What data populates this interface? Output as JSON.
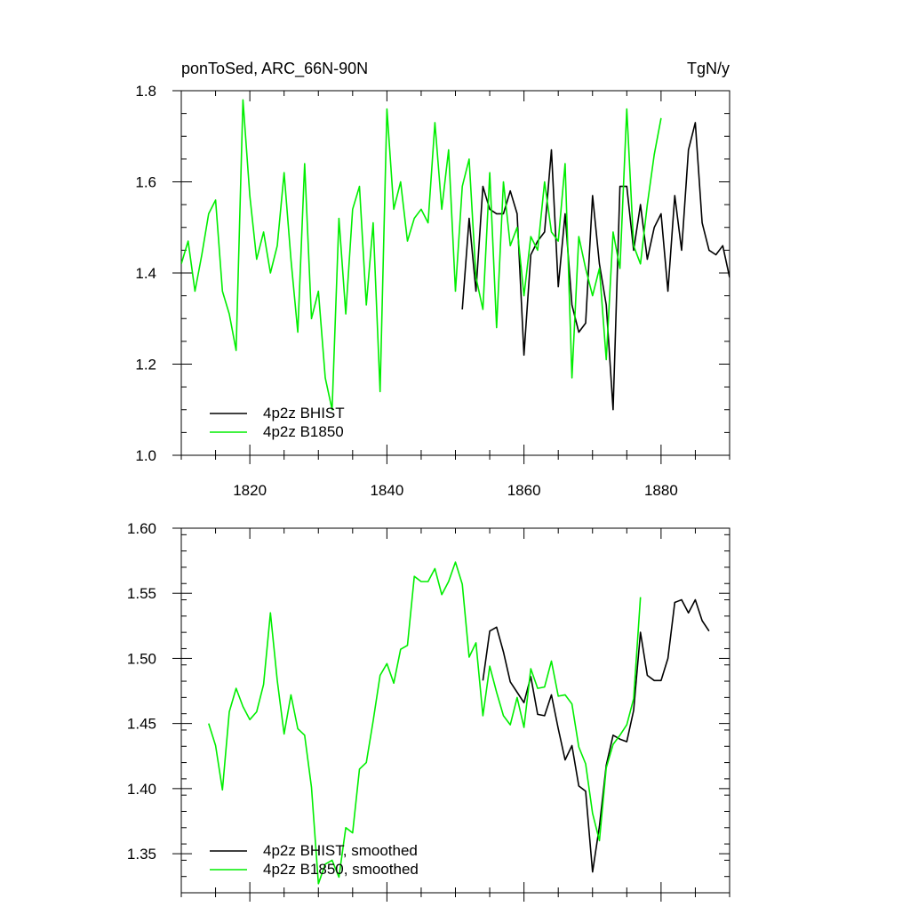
{
  "chart_data": [
    {
      "type": "line",
      "title_left": "ponToSed, ARC_66N-90N",
      "title_right": "TgN/y",
      "xlim": [
        1810,
        1890
      ],
      "ylim": [
        1.0,
        1.8
      ],
      "x_ticks": [
        1820,
        1840,
        1860,
        1880
      ],
      "y_ticks": [
        1.0,
        1.2,
        1.4,
        1.6,
        1.8
      ],
      "y_tick_labels": [
        "1.0",
        "1.2",
        "1.4",
        "1.6",
        "1.8"
      ],
      "grid": false,
      "legend_position": "bottom-left",
      "series": [
        {
          "name": "4p2z BHIST",
          "color": "#000000",
          "x": [
            1851,
            1852,
            1853,
            1854,
            1855,
            1856,
            1857,
            1858,
            1859,
            1860,
            1861,
            1862,
            1863,
            1864,
            1865,
            1866,
            1867,
            1868,
            1869,
            1870,
            1871,
            1872,
            1873,
            1874,
            1875,
            1876,
            1877,
            1878,
            1879,
            1880,
            1881,
            1882,
            1883,
            1884,
            1885,
            1886,
            1887,
            1888,
            1889,
            1890
          ],
          "y": [
            1.32,
            1.52,
            1.36,
            1.59,
            1.54,
            1.53,
            1.53,
            1.58,
            1.53,
            1.22,
            1.44,
            1.47,
            1.49,
            1.67,
            1.37,
            1.53,
            1.33,
            1.27,
            1.29,
            1.57,
            1.42,
            1.33,
            1.1,
            1.59,
            1.59,
            1.45,
            1.55,
            1.43,
            1.5,
            1.53,
            1.36,
            1.57,
            1.45,
            1.67,
            1.73,
            1.51,
            1.45,
            1.44,
            1.46,
            1.39
          ]
        },
        {
          "name": "4p2z B1850",
          "color": "#00ee00",
          "x": [
            1810,
            1811,
            1812,
            1813,
            1814,
            1815,
            1816,
            1817,
            1818,
            1819,
            1820,
            1821,
            1822,
            1823,
            1824,
            1825,
            1826,
            1827,
            1828,
            1829,
            1830,
            1831,
            1832,
            1833,
            1834,
            1835,
            1836,
            1837,
            1838,
            1839,
            1840,
            1841,
            1842,
            1843,
            1844,
            1845,
            1846,
            1847,
            1848,
            1849,
            1850,
            1851,
            1852,
            1853,
            1854,
            1855,
            1856,
            1857,
            1858,
            1859,
            1860,
            1861,
            1862,
            1863,
            1864,
            1865,
            1866,
            1867,
            1868,
            1869,
            1870,
            1871,
            1872,
            1873,
            1874,
            1875,
            1876,
            1877,
            1878,
            1879,
            1880
          ],
          "y": [
            1.42,
            1.47,
            1.36,
            1.44,
            1.53,
            1.56,
            1.36,
            1.31,
            1.23,
            1.78,
            1.57,
            1.43,
            1.49,
            1.4,
            1.46,
            1.62,
            1.43,
            1.27,
            1.64,
            1.3,
            1.36,
            1.17,
            1.1,
            1.52,
            1.31,
            1.54,
            1.59,
            1.33,
            1.51,
            1.14,
            1.76,
            1.54,
            1.6,
            1.47,
            1.52,
            1.54,
            1.51,
            1.73,
            1.54,
            1.67,
            1.36,
            1.59,
            1.65,
            1.39,
            1.32,
            1.62,
            1.28,
            1.6,
            1.46,
            1.5,
            1.35,
            1.48,
            1.45,
            1.6,
            1.49,
            1.47,
            1.64,
            1.17,
            1.48,
            1.41,
            1.35,
            1.41,
            1.21,
            1.49,
            1.41,
            1.76,
            1.46,
            1.42,
            1.55,
            1.66,
            1.74
          ]
        }
      ]
    },
    {
      "type": "line",
      "xlim": [
        1810,
        1890
      ],
      "ylim": [
        1.32,
        1.6
      ],
      "x_ticks": [
        1820,
        1840,
        1860,
        1880
      ],
      "y_ticks": [
        1.35,
        1.4,
        1.45,
        1.5,
        1.55,
        1.6
      ],
      "y_tick_labels": [
        "1.35",
        "1.40",
        "1.45",
        "1.50",
        "1.55",
        "1.60"
      ],
      "grid": false,
      "legend_position": "bottom-left",
      "series": [
        {
          "name": "4p2z BHIST, smoothed",
          "color": "#000000",
          "x": [
            1854,
            1855,
            1856,
            1857,
            1858,
            1859,
            1860,
            1861,
            1862,
            1863,
            1864,
            1865,
            1866,
            1867,
            1868,
            1869,
            1870,
            1871,
            1872,
            1873,
            1874,
            1875,
            1876,
            1877,
            1878,
            1879,
            1880,
            1881,
            1882,
            1883,
            1884,
            1885,
            1886,
            1887
          ],
          "y": [
            1.483,
            1.521,
            1.524,
            1.505,
            1.482,
            1.474,
            1.466,
            1.486,
            1.457,
            1.456,
            1.472,
            1.446,
            1.422,
            1.433,
            1.402,
            1.398,
            1.336,
            1.371,
            1.418,
            1.441,
            1.438,
            1.436,
            1.46,
            1.52,
            1.487,
            1.483,
            1.483,
            1.5,
            1.543,
            1.545,
            1.535,
            1.545,
            1.529,
            1.521
          ]
        },
        {
          "name": "4p2z B1850, smoothed",
          "color": "#00ee00",
          "x": [
            1814,
            1815,
            1816,
            1817,
            1818,
            1819,
            1820,
            1821,
            1822,
            1823,
            1824,
            1825,
            1826,
            1827,
            1828,
            1829,
            1830,
            1831,
            1832,
            1833,
            1834,
            1835,
            1836,
            1837,
            1838,
            1839,
            1840,
            1841,
            1842,
            1843,
            1844,
            1845,
            1846,
            1847,
            1848,
            1849,
            1850,
            1851,
            1852,
            1853,
            1854,
            1855,
            1856,
            1857,
            1858,
            1859,
            1860,
            1861,
            1862,
            1863,
            1864,
            1865,
            1866,
            1867,
            1868,
            1869,
            1870,
            1871,
            1872,
            1873,
            1874,
            1875,
            1876,
            1877
          ],
          "y": [
            1.45,
            1.433,
            1.399,
            1.459,
            1.477,
            1.463,
            1.453,
            1.459,
            1.48,
            1.535,
            1.483,
            1.442,
            1.472,
            1.446,
            1.441,
            1.401,
            1.327,
            1.342,
            1.345,
            1.332,
            1.37,
            1.366,
            1.415,
            1.42,
            1.452,
            1.487,
            1.496,
            1.481,
            1.507,
            1.51,
            1.563,
            1.559,
            1.559,
            1.569,
            1.549,
            1.559,
            1.574,
            1.557,
            1.501,
            1.512,
            1.456,
            1.494,
            1.474,
            1.456,
            1.449,
            1.47,
            1.447,
            1.492,
            1.477,
            1.478,
            1.498,
            1.471,
            1.472,
            1.465,
            1.432,
            1.419,
            1.381,
            1.36,
            1.416,
            1.434,
            1.441,
            1.449,
            1.469,
            1.547
          ]
        }
      ]
    }
  ]
}
